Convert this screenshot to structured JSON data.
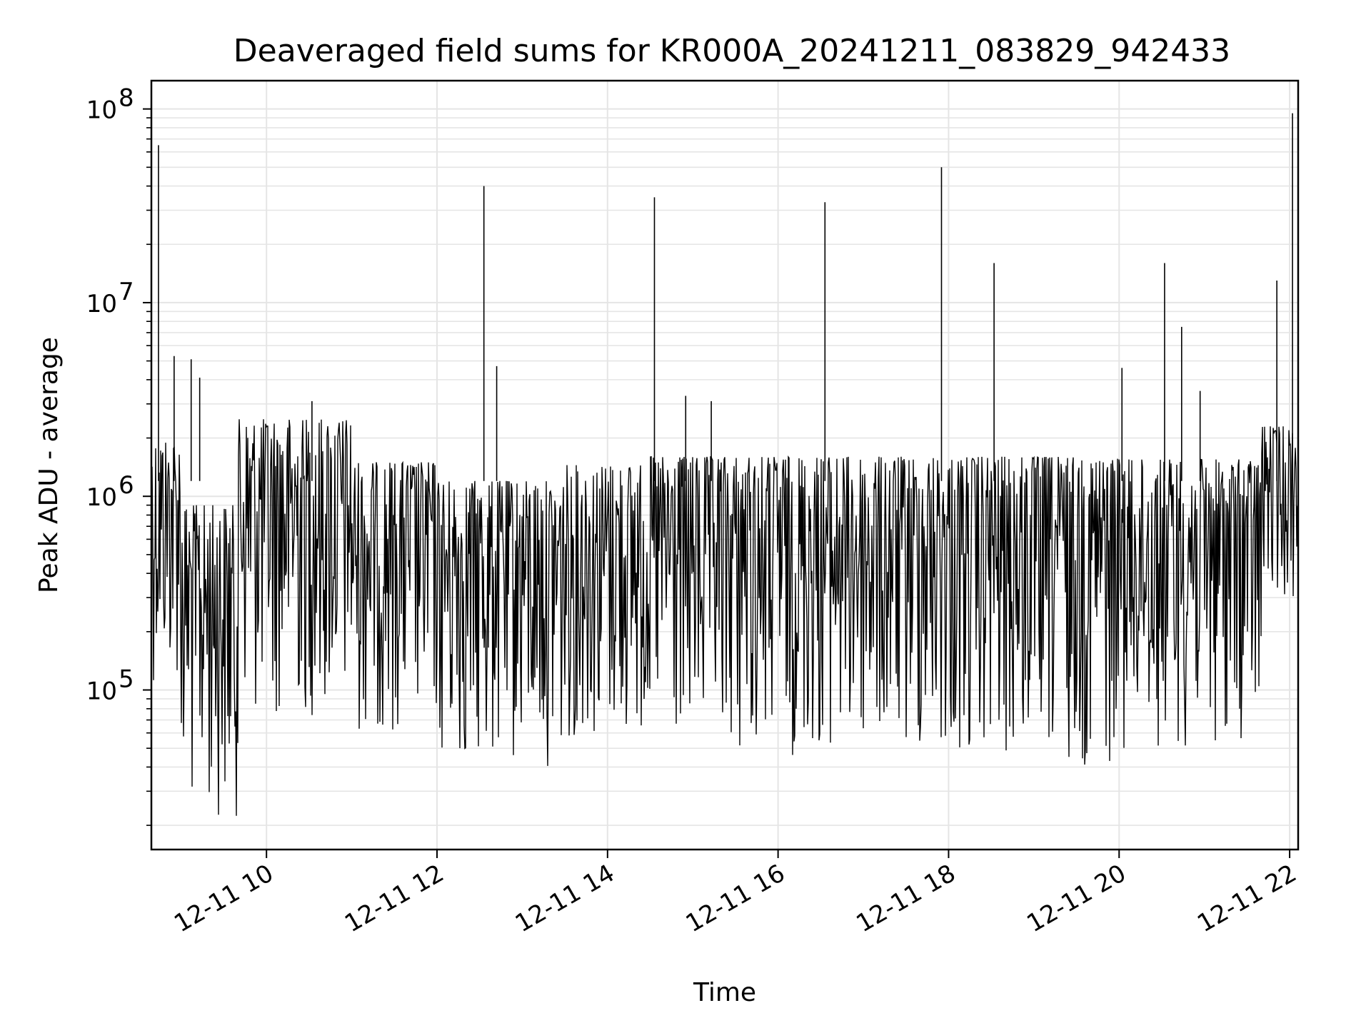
{
  "chart_data": {
    "type": "line",
    "title": "Deaveraged field sums for KR000A_20241211_083829_942433",
    "xlabel": "Time",
    "ylabel": "Peak ADU - average",
    "yscale": "log",
    "ylim": [
      15000,
      140000000
    ],
    "xlim": [
      "2024-12-11 08:39",
      "2024-12-11 22:06"
    ],
    "grid": true,
    "grid_minor": true,
    "line_color": "#000000",
    "grid_color": "#e5e5e5",
    "x_ticks": [
      {
        "value": "2024-12-11 10:00",
        "label": "12-11 10"
      },
      {
        "value": "2024-12-11 12:00",
        "label": "12-11 12"
      },
      {
        "value": "2024-12-11 14:00",
        "label": "12-11 14"
      },
      {
        "value": "2024-12-11 16:00",
        "label": "12-11 16"
      },
      {
        "value": "2024-12-11 18:00",
        "label": "12-11 18"
      },
      {
        "value": "2024-12-11 20:00",
        "label": "12-11 20"
      },
      {
        "value": "2024-12-11 22:00",
        "label": "12-11 22"
      }
    ],
    "y_ticks": [
      {
        "value": 100000,
        "base": "10",
        "exp": "5"
      },
      {
        "value": 1000000,
        "base": "10",
        "exp": "6"
      },
      {
        "value": 10000000,
        "base": "10",
        "exp": "7"
      },
      {
        "value": 100000000,
        "base": "10",
        "exp": "8"
      }
    ],
    "envelope_note_series": "dense noisy signal; values approximated as high/low envelope per time segment",
    "envelope": [
      {
        "from": "2024-12-11 08:39",
        "to": "2024-12-11 09:00",
        "high": 2000000,
        "low": 110000
      },
      {
        "from": "2024-12-11 09:00",
        "to": "2024-12-11 09:40",
        "high": 900000,
        "low": 22000
      },
      {
        "from": "2024-12-11 09:40",
        "to": "2024-12-11 11:00",
        "high": 2500000,
        "low": 70000
      },
      {
        "from": "2024-12-11 11:00",
        "to": "2024-12-11 12:00",
        "high": 1500000,
        "low": 60000
      },
      {
        "from": "2024-12-11 12:00",
        "to": "2024-12-11 13:30",
        "high": 1200000,
        "low": 40000
      },
      {
        "from": "2024-12-11 13:30",
        "to": "2024-12-11 14:30",
        "high": 1450000,
        "low": 55000
      },
      {
        "from": "2024-12-11 14:30",
        "to": "2024-12-11 18:00",
        "high": 1600000,
        "low": 45000
      },
      {
        "from": "2024-12-11 18:00",
        "to": "2024-12-11 20:00",
        "high": 1600000,
        "low": 40000
      },
      {
        "from": "2024-12-11 20:00",
        "to": "2024-12-11 21:40",
        "high": 1550000,
        "low": 50000
      },
      {
        "from": "2024-12-11 21:40",
        "to": "2024-12-11 22:06",
        "high": 2300000,
        "low": 300000
      }
    ],
    "spikes": [
      {
        "x": "2024-12-11 08:44",
        "y": 65000000
      },
      {
        "x": "2024-12-11 08:55",
        "y": 5300000
      },
      {
        "x": "2024-12-11 09:07",
        "y": 5100000
      },
      {
        "x": "2024-12-11 09:13",
        "y": 4100000
      },
      {
        "x": "2024-12-11 10:32",
        "y": 3100000
      },
      {
        "x": "2024-12-11 12:33",
        "y": 40000000
      },
      {
        "x": "2024-12-11 12:42",
        "y": 4700000
      },
      {
        "x": "2024-12-11 14:33",
        "y": 35000000
      },
      {
        "x": "2024-12-11 14:55",
        "y": 3300000
      },
      {
        "x": "2024-12-11 15:13",
        "y": 3100000
      },
      {
        "x": "2024-12-11 16:33",
        "y": 33000000
      },
      {
        "x": "2024-12-11 17:55",
        "y": 50000000
      },
      {
        "x": "2024-12-11 18:32",
        "y": 16000000
      },
      {
        "x": "2024-12-11 20:02",
        "y": 4600000
      },
      {
        "x": "2024-12-11 20:32",
        "y": 16000000
      },
      {
        "x": "2024-12-11 20:44",
        "y": 7500000
      },
      {
        "x": "2024-12-11 20:57",
        "y": 3500000
      },
      {
        "x": "2024-12-11 21:51",
        "y": 13000000
      },
      {
        "x": "2024-12-11 22:02",
        "y": 95000000
      }
    ]
  }
}
